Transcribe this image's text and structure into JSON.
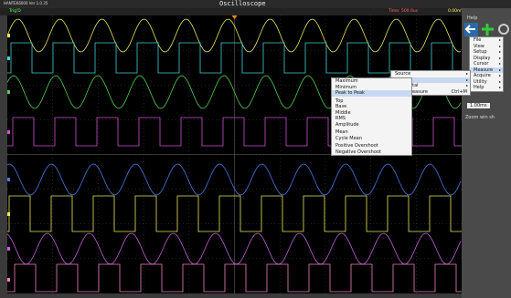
{
  "window": {
    "app_name": "HANTEK6000 Ver 1.0.35",
    "title": "Oscilloscope"
  },
  "status": {
    "trigger": "Trig'D",
    "timebase": "Time: 500.0us",
    "level": "0.00mV"
  },
  "panel": {
    "header": "Help",
    "zoom_label": "Zoom win sh",
    "zoom_value": "1.00ms"
  },
  "menu": {
    "items": [
      "File",
      "View",
      "Setup",
      "Display",
      "Cursor",
      "Measure",
      "Acquire",
      "Utility",
      "Help"
    ]
  },
  "measure_menu": {
    "items": [
      "Source",
      "Vertical",
      "Horizontal",
      "Clear Measure"
    ],
    "shortcut": "Ctrl+M"
  },
  "vertical_menu": {
    "items": [
      "Maximum",
      "Minimum",
      "Peak to Peak",
      "Top",
      "Base",
      "Middle",
      "RMS",
      "Amplitude",
      "Mean",
      "Cycle Mean",
      "Positive Overshoot",
      "Negative Overshoot"
    ]
  }
}
